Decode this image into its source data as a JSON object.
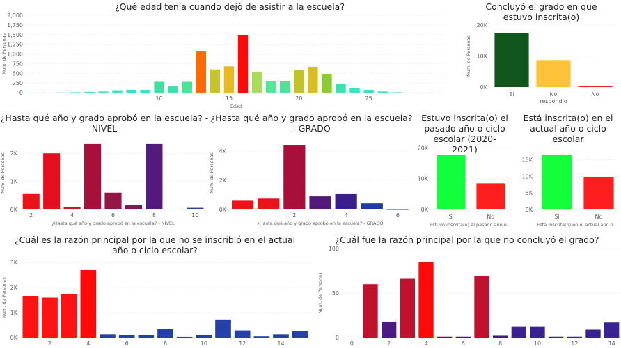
{
  "chart_data": [
    {
      "id": "edad",
      "type": "bar",
      "title": "¿Qué edad tenía cuando dejó de asistir a la escuela?",
      "xlabel": "Edad",
      "ylabel": "Num. de Personas",
      "x": [
        1,
        2,
        3,
        4,
        5,
        6,
        7,
        8,
        9,
        10,
        11,
        12,
        13,
        14,
        15,
        16,
        17,
        18,
        19,
        20,
        21,
        22,
        23,
        24,
        25,
        26,
        27,
        28,
        29,
        30
      ],
      "values": [
        0,
        0,
        5,
        10,
        20,
        30,
        45,
        60,
        70,
        280,
        170,
        280,
        1080,
        600,
        680,
        1480,
        540,
        300,
        290,
        580,
        670,
        480,
        230,
        120,
        60,
        30,
        10,
        0,
        0,
        0
      ],
      "colors": [
        "#3de0c8",
        "#3de0c8",
        "#3de0c8",
        "#3de0c8",
        "#3de0c8",
        "#3de0c8",
        "#3de0c8",
        "#3de0c8",
        "#3de0c8",
        "#3de0a0",
        "#3de0a8",
        "#48e49a",
        "#ff6a00",
        "#c9c22c",
        "#e8b923",
        "#ff0a0a",
        "#a8dc5a",
        "#55e69a",
        "#52e196",
        "#c4c22a",
        "#d9bd25",
        "#8ccb35",
        "#3de0b0",
        "#3de0c0",
        "#3de0c8",
        "#3de0c8",
        "#3de0c8",
        "#3de0c8",
        "#3de0c8",
        "#3de0c8"
      ],
      "xticks": [
        10,
        15,
        20,
        25
      ],
      "yticks": [
        0,
        250,
        500,
        750,
        1000,
        1250,
        1500,
        1750,
        2000
      ],
      "ytick_labels": [
        "0",
        "250",
        "500",
        "750",
        "1,000",
        "1,250",
        "1,500",
        "1,750",
        "2,000"
      ],
      "xlim": [
        0.5,
        30.5
      ],
      "ylim": [
        0,
        2000
      ],
      "grid": true
    },
    {
      "id": "concluyo",
      "type": "bar",
      "title": "Concluyó el grado en que estuvo inscrita(o)",
      "xlabel": "",
      "ylabel": "Num. de Personas",
      "categories": [
        "Si",
        "No respondio",
        "No"
      ],
      "values": [
        17500,
        8700,
        400
      ],
      "colors": [
        "#11561c",
        "#ffc23a",
        "#ff1f1f"
      ],
      "yticks": [
        0,
        10000,
        20000
      ],
      "ytick_labels": [
        "0K",
        "10K",
        "20K"
      ],
      "ylim": [
        0,
        20000
      ],
      "grid": true
    },
    {
      "id": "nivel",
      "type": "bar",
      "title": "¿Hasta qué año y grado aprobó en la escuela? - NIVEL",
      "xlabel": "¿Hasta qué año y grado aprobó en la escuela? - NIVEL",
      "ylabel": "Num. de Personas",
      "x": [
        2,
        3,
        4,
        5,
        6,
        7,
        8,
        9,
        10
      ],
      "values": [
        550,
        2000,
        100,
        2330,
        600,
        150,
        2330,
        20,
        60
      ],
      "colors": [
        "#ee1219",
        "#e30e1e",
        "#d0102c",
        "#a80f3a",
        "#941646",
        "#7d1a55",
        "#531a7c",
        "#2a2596",
        "#2b3fa6"
      ],
      "xticks": [
        2,
        4,
        6,
        8,
        10
      ],
      "yticks": [
        0,
        1000,
        2000
      ],
      "ytick_labels": [
        "0K",
        "1K",
        "2K"
      ],
      "xlim": [
        1.5,
        10.5
      ],
      "ylim": [
        0,
        2600
      ],
      "grid": true
    },
    {
      "id": "grado",
      "type": "bar",
      "title": "¿Hasta qué año y grado aprobó en la escuela? - GRADO",
      "xlabel": "¿Hasta qué año y grado aprobó en la escuela? - GRADO",
      "ylabel": "Num. de Personas",
      "x": [
        0,
        1,
        2,
        3,
        4,
        5,
        6
      ],
      "values": [
        600,
        750,
        4400,
        900,
        1050,
        420,
        0
      ],
      "colors": [
        "#ee1219",
        "#e8131b",
        "#a80f3a",
        "#531a7c",
        "#3a1f8c",
        "#1e3aa8",
        "#1e3aa8"
      ],
      "xticks": [
        2,
        4,
        6
      ],
      "yticks": [
        0,
        2000,
        4000
      ],
      "ytick_labels": [
        "0K",
        "2K",
        "4K"
      ],
      "xlim": [
        -0.5,
        6.5
      ],
      "ylim": [
        0,
        5000
      ],
      "grid": true
    },
    {
      "id": "estuvo",
      "type": "bar",
      "title": "Estuvo inscrita(o) el pasado año o ciclo escolar (2020- 2021)",
      "xlabel": "Estuvo inscrita(o) el pasado año o ...",
      "ylabel": "",
      "categories": [
        "Si",
        "No"
      ],
      "values": [
        17700,
        8500
      ],
      "colors": [
        "#13ff3c",
        "#ff1f1f"
      ],
      "yticks": [
        0,
        10000,
        20000
      ],
      "ytick_labels": [
        "0K",
        "10K",
        "20K"
      ],
      "ylim": [
        0,
        21000
      ],
      "grid": true
    },
    {
      "id": "esta",
      "type": "bar",
      "title": "Está inscrita(o) en el actual año o ciclo escolar",
      "xlabel": "Está inscrita(o) en el actual año o ...",
      "ylabel": "",
      "categories": [
        "Si",
        "No"
      ],
      "values": [
        16500,
        9800
      ],
      "colors": [
        "#13ff3c",
        "#ff1f1f"
      ],
      "yticks": [
        0,
        5000,
        10000,
        15000
      ],
      "ytick_labels": [
        "0K",
        "5K",
        "10K",
        "15K"
      ],
      "ylim": [
        0,
        19500
      ],
      "grid": true
    },
    {
      "id": "razon_inscribio",
      "type": "bar",
      "title": "¿Cuál es la razón principal por la que no se inscribió en el actual año o ciclo escolar?",
      "xlabel": "",
      "ylabel": "Num. de Personas",
      "x": [
        1,
        2,
        3,
        4,
        5,
        6,
        7,
        8,
        9,
        10,
        11,
        12,
        13,
        14,
        15
      ],
      "values": [
        1650,
        1600,
        1750,
        2700,
        130,
        110,
        100,
        360,
        30,
        90,
        700,
        290,
        50,
        130,
        250
      ],
      "colors": [
        "#ff1212",
        "#ff1212",
        "#ff1212",
        "#ff0a0a",
        "#2540a8",
        "#2540a8",
        "#2540a8",
        "#2540a8",
        "#2540a8",
        "#2540a8",
        "#2540a8",
        "#2540a8",
        "#2540a8",
        "#2540a8",
        "#2540a8"
      ],
      "xticks": [
        2,
        4,
        6,
        8,
        10,
        12,
        14
      ],
      "yticks": [
        0,
        1000,
        2000,
        3000
      ],
      "ytick_labels": [
        "0K",
        "1K",
        "2K",
        "3K"
      ],
      "xlim": [
        0.5,
        15.5
      ],
      "ylim": [
        0,
        3200
      ],
      "grid": true
    },
    {
      "id": "razon_concluyo",
      "type": "bar",
      "title": "¿Cuál fue la razón principal por la que no concluyó el grado?",
      "xlabel": "",
      "ylabel": "Num. de Personas",
      "x": [
        0,
        1,
        2,
        3,
        4,
        5,
        6,
        7,
        8,
        9,
        10,
        11,
        12,
        13,
        14
      ],
      "values": [
        0,
        60,
        18,
        66,
        85,
        1,
        1,
        69,
        2,
        12,
        12,
        1,
        1,
        9,
        17
      ],
      "colors": [
        "#c0112f",
        "#c0112f",
        "#4a1a80",
        "#c0112f",
        "#ff0a0a",
        "#4a1a80",
        "#4a1a80",
        "#c0112f",
        "#4a1a80",
        "#3a2290",
        "#3a2290",
        "#3a2290",
        "#3a2290",
        "#3a2290",
        "#3a2290"
      ],
      "xticks": [
        0,
        2,
        4,
        6,
        8,
        10,
        12,
        14
      ],
      "yticks": [
        0,
        50,
        100
      ],
      "ytick_labels": [
        "0",
        "50",
        "100"
      ],
      "xlim": [
        -0.5,
        14.5
      ],
      "ylim": [
        0,
        100
      ],
      "grid": true
    }
  ]
}
